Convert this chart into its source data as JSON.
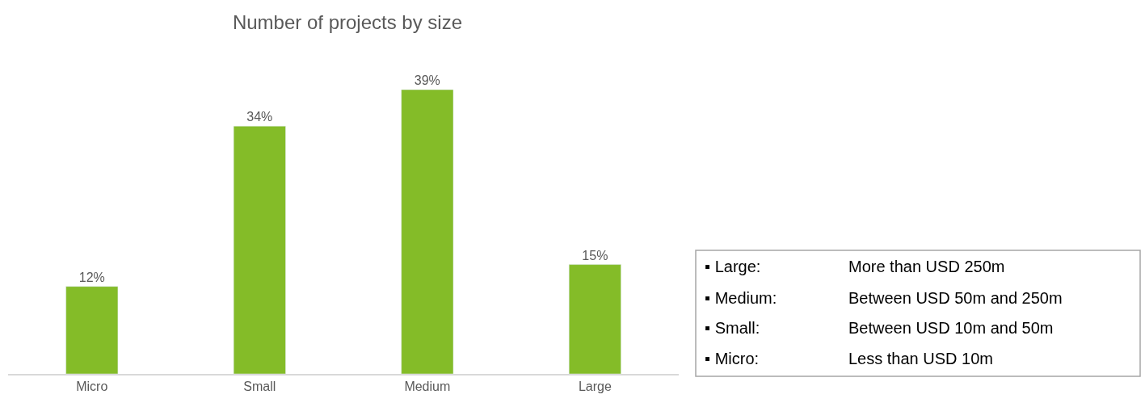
{
  "chart_data": {
    "type": "bar",
    "title": "Number of projects by size",
    "categories": [
      "Micro",
      "Small",
      "Medium",
      "Large"
    ],
    "values": [
      12,
      34,
      39,
      15
    ],
    "value_labels": [
      "12%",
      "34%",
      "39%",
      "15%"
    ],
    "color": "#84bc28",
    "annotations": [
      "▪ Large: More than USD 250m",
      "▪ Medium: Between USD 50m and 250m",
      "▪ Small: Between USD 10m and 50m",
      "▪ Micro: Less than USD 10m"
    ]
  }
}
